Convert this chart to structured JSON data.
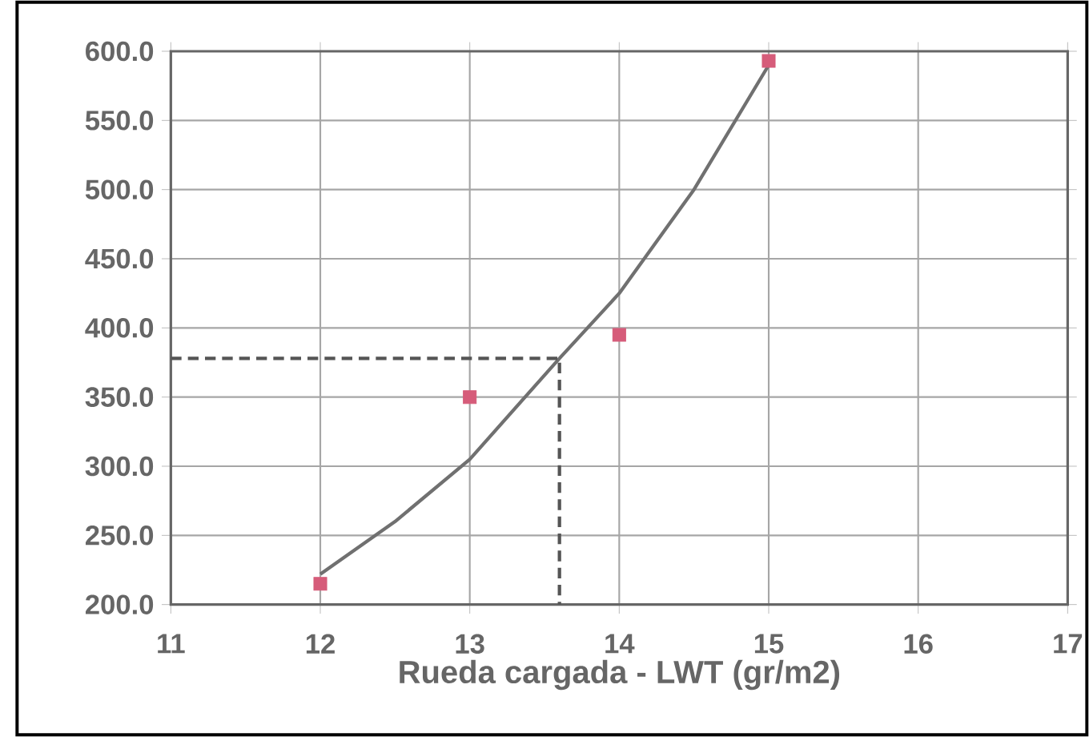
{
  "chart_data": {
    "type": "scatter",
    "xlabel": "Rueda cargada - LWT (gr/m2)",
    "xlim": [
      11,
      17
    ],
    "xticks": [
      11,
      12,
      13,
      14,
      15,
      16,
      17
    ],
    "ylim": [
      200,
      600
    ],
    "yticks": [
      {
        "value": 200,
        "label": "200.0"
      },
      {
        "value": 250,
        "label": "250.0"
      },
      {
        "value": 300,
        "label": "300.0"
      },
      {
        "value": 350,
        "label": "350.0"
      },
      {
        "value": 400,
        "label": "400.0"
      },
      {
        "value": 450,
        "label": "450.0"
      },
      {
        "value": 500,
        "label": "500.0"
      },
      {
        "value": 550,
        "label": "550.0"
      },
      {
        "value": 600,
        "label": "600.0"
      }
    ],
    "grid": true,
    "series": [
      {
        "marker": "square",
        "color": "#d65c7a",
        "x": [
          12,
          13,
          14,
          15
        ],
        "values": [
          215,
          350,
          395,
          593
        ]
      },
      {
        "type": "line",
        "marker": "none",
        "line_style": "solid",
        "color": "#707070",
        "x": [
          12,
          12.5,
          13,
          13.6,
          14,
          14.5,
          15
        ],
        "values": [
          222,
          260,
          305,
          378,
          425,
          500,
          590
        ]
      },
      {
        "type": "line",
        "marker": "none",
        "line_style": "dashed",
        "color": "#555555",
        "x": [
          11,
          13.6,
          13.6
        ],
        "values": [
          378,
          378,
          200
        ]
      }
    ]
  }
}
